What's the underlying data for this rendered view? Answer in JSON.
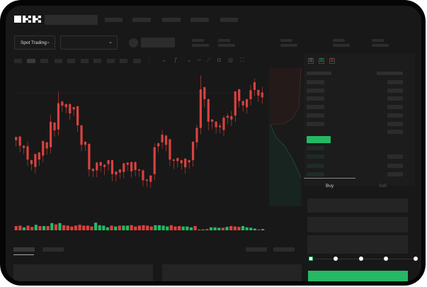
{
  "brand": {
    "logo_text": "OKX"
  },
  "header": {
    "market_select": {
      "label": "Spot Trading",
      "icon": "chevron-down-icon"
    },
    "pair_select": {
      "value": "",
      "icon": "chevron-down-icon"
    }
  },
  "toolbar": {
    "icons": [
      "candle-type-icon",
      "chevron-down-icon",
      "indicator-icon",
      "chevron-down-icon",
      "line-icon",
      "ruler-icon",
      "camera-icon",
      "settings-icon",
      "fullscreen-icon"
    ]
  },
  "order_book": {
    "view_icons": [
      "book-both-icon",
      "book-bids-icon",
      "book-asks-icon"
    ]
  },
  "trade_panel": {
    "tabs": [
      {
        "label": "Buy",
        "active": true
      },
      {
        "label": "Sell",
        "active": false
      }
    ],
    "leverage_slider": {
      "value": 0,
      "stops": 5
    }
  },
  "colors": {
    "up": "#25b865",
    "down": "#d9423f",
    "accent": "#25b865"
  },
  "chart_data": {
    "type": "candlestick",
    "candles": [
      [
        185,
        175,
        187,
        173
      ],
      [
        187,
        157,
        189,
        155
      ],
      [
        157,
        150,
        159,
        148
      ],
      [
        155,
        112,
        170,
        110
      ],
      [
        110,
        97,
        112,
        95
      ],
      [
        130,
        88,
        132,
        85
      ],
      [
        135,
        112,
        137,
        110
      ],
      [
        172,
        125,
        175,
        123
      ],
      [
        168,
        148,
        170,
        146
      ],
      [
        235,
        152,
        257,
        150
      ],
      [
        232,
        207,
        234,
        205
      ],
      [
        295,
        210,
        333,
        208
      ],
      [
        300,
        287,
        303,
        285
      ],
      [
        292,
        282,
        294,
        280
      ],
      [
        292,
        262,
        295,
        260
      ],
      [
        282,
        275,
        284,
        273
      ],
      [
        285,
        223,
        287,
        221
      ],
      [
        223,
        160,
        225,
        158
      ],
      [
        170,
        160,
        172,
        158
      ],
      [
        163,
        80,
        165,
        75
      ],
      [
        82,
        75,
        84,
        73
      ],
      [
        102,
        77,
        105,
        73
      ],
      [
        104,
        92,
        106,
        90
      ],
      [
        95,
        88,
        98,
        80
      ],
      [
        110,
        97,
        112,
        95
      ],
      [
        110,
        65,
        112,
        60
      ],
      [
        73,
        63,
        75,
        60
      ],
      [
        80,
        70,
        82,
        68
      ],
      [
        100,
        72,
        102,
        70
      ],
      [
        102,
        95,
        104,
        93
      ],
      [
        104,
        74,
        106,
        72
      ],
      [
        104,
        78,
        106,
        76
      ],
      [
        80,
        77,
        82,
        75
      ],
      [
        77,
        45,
        80,
        43
      ],
      [
        47,
        43,
        49,
        41
      ],
      [
        60,
        40,
        62,
        38
      ],
      [
        152,
        65,
        165,
        63
      ],
      [
        165,
        155,
        167,
        153
      ],
      [
        193,
        168,
        208,
        166
      ],
      [
        190,
        160,
        192,
        158
      ],
      [
        178,
        112,
        180,
        110
      ],
      [
        112,
        108,
        115,
        100
      ],
      [
        117,
        107,
        119,
        105
      ],
      [
        110,
        100,
        112,
        98
      ],
      [
        115,
        87,
        117,
        85
      ],
      [
        110,
        103,
        112,
        101
      ],
      [
        170,
        110,
        172,
        108
      ],
      [
        215,
        168,
        225,
        166
      ],
      [
        340,
        215,
        385,
        213
      ],
      [
        347,
        308,
        349,
        300
      ],
      [
        308,
        235,
        310,
        225
      ],
      [
        242,
        235,
        244,
        230
      ],
      [
        235,
        217,
        237,
        215
      ],
      [
        222,
        217,
        230,
        215
      ],
      [
        248,
        208,
        255,
        206
      ],
      [
        254,
        248,
        262,
        246
      ],
      [
        253,
        242,
        270,
        240
      ],
      [
        333,
        255,
        335,
        253
      ],
      [
        340,
        302,
        342,
        300
      ],
      [
        302,
        288,
        304,
        286
      ],
      [
        308,
        282,
        310,
        280
      ],
      [
        337,
        308,
        355,
        306
      ],
      [
        363,
        338,
        375,
        336
      ],
      [
        338,
        320,
        340,
        318
      ],
      [
        330,
        314,
        348,
        312
      ]
    ],
    "volume": [
      [
        10,
        "down"
      ],
      [
        11,
        "down"
      ],
      [
        7,
        "up"
      ],
      [
        11,
        "down"
      ],
      [
        8,
        "down"
      ],
      [
        13,
        "up"
      ],
      [
        10,
        "down"
      ],
      [
        10,
        "up"
      ],
      [
        10,
        "down"
      ],
      [
        17,
        "up"
      ],
      [
        14,
        "down"
      ],
      [
        17,
        "up"
      ],
      [
        12,
        "down"
      ],
      [
        11,
        "down"
      ],
      [
        9,
        "down"
      ],
      [
        11,
        "down"
      ],
      [
        13,
        "down"
      ],
      [
        11,
        "down"
      ],
      [
        11,
        "down"
      ],
      [
        9,
        "down"
      ],
      [
        18,
        "up"
      ],
      [
        12,
        "up"
      ],
      [
        11,
        "up"
      ],
      [
        7,
        "up"
      ],
      [
        11,
        "down"
      ],
      [
        9,
        "up"
      ],
      [
        11,
        "down"
      ],
      [
        11,
        "up"
      ],
      [
        11,
        "up"
      ],
      [
        12,
        "down"
      ],
      [
        9,
        "down"
      ],
      [
        11,
        "down"
      ],
      [
        12,
        "down"
      ],
      [
        11,
        "down"
      ],
      [
        9,
        "down"
      ],
      [
        12,
        "up"
      ],
      [
        12,
        "up"
      ],
      [
        11,
        "up"
      ],
      [
        9,
        "up"
      ],
      [
        12,
        "down"
      ],
      [
        9,
        "down"
      ],
      [
        10,
        "down"
      ],
      [
        9,
        "up"
      ],
      [
        9,
        "up"
      ],
      [
        7,
        "up"
      ],
      [
        10,
        "down"
      ],
      [
        2,
        "down"
      ],
      [
        2,
        "up"
      ],
      [
        3,
        "down"
      ],
      [
        7,
        "up"
      ],
      [
        7,
        "up"
      ],
      [
        6,
        "up"
      ],
      [
        6,
        "down"
      ],
      [
        8,
        "up"
      ],
      [
        10,
        "down"
      ],
      [
        9,
        "down"
      ],
      [
        8,
        "down"
      ],
      [
        10,
        "up"
      ],
      [
        7,
        "up"
      ],
      [
        6,
        "up"
      ],
      [
        4,
        "up"
      ],
      [
        2,
        "down"
      ],
      [
        3,
        "up"
      ]
    ]
  }
}
